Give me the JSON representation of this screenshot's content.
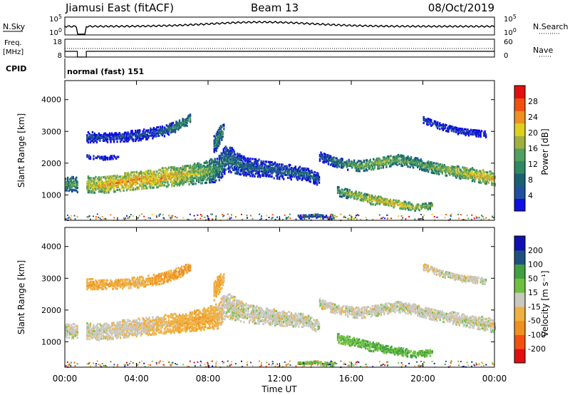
{
  "header": {
    "station": "Jiamusi East (fitACF)",
    "beam": "Beam 13",
    "date": "08/Oct/2019"
  },
  "aux_panels": {
    "nsky": {
      "label": "N.Sky",
      "tick_top": "10^5",
      "tick_bottom": "10^0"
    },
    "nsearch": {
      "label": "N.Search",
      "tick_top": "10^5",
      "tick_bottom": "10^0"
    },
    "freq": {
      "label_line1": "Freq.",
      "label_line2": "[MHz]",
      "tick_top": "18",
      "tick_bottom": "8"
    },
    "nave": {
      "label": "Nave",
      "tick_top": "60",
      "tick_bottom": "0"
    },
    "cpid": {
      "label": "CPID",
      "mode_text": "normal (fast) 151"
    }
  },
  "colors": {
    "power": [
      "#1010e0",
      "#2050a0",
      "#1a6070",
      "#2e8a60",
      "#50a060",
      "#a0b040",
      "#e0d020",
      "#f09020",
      "#f05010",
      "#e01010"
    ],
    "velocity": [
      "#e01010",
      "#f05010",
      "#f09020",
      "#f0b040",
      "#c8c8c0",
      "#70c040",
      "#40a040",
      "#205080",
      "#1010b0"
    ]
  },
  "chart_data": [
    {
      "type": "heatmap",
      "panel": "power",
      "xlabel": "",
      "ylabel": "Slant Range [km]",
      "x_ticks": [
        "00:00",
        "04:00",
        "08:00",
        "12:00",
        "16:00",
        "20:00",
        "00:00"
      ],
      "x_range_hours": [
        0,
        24
      ],
      "y_ticks": [
        "1000",
        "2000",
        "3000",
        "4000"
      ],
      "y_tick_values": [
        1000,
        2000,
        3000,
        4000
      ],
      "ylim": [
        200,
        4600
      ],
      "colorbar": {
        "label": "Power [dB]",
        "ticks": [
          "4",
          "8",
          "12",
          "16",
          "20",
          "24",
          "28"
        ],
        "tick_values": [
          4,
          8,
          12,
          16,
          20,
          24,
          28
        ],
        "range": [
          0,
          32
        ]
      },
      "bands": [
        {
          "x": [
            0.0,
            0.7,
            1.0,
            2.0,
            4.0,
            6.0,
            7.5,
            8.5,
            9.0,
            10.0,
            12.0,
            13.5,
            14.2
          ],
          "y": [
            1400,
            1350,
            1380,
            1350,
            1500,
            1620,
            1720,
            1850,
            2200,
            1950,
            1780,
            1700,
            1500
          ],
          "w": [
            220,
            230,
            250,
            260,
            280,
            300,
            320,
            400,
            420,
            300,
            240,
            200,
            180
          ],
          "p": [
            14,
            14,
            18,
            22,
            24,
            22,
            18,
            12,
            10,
            8,
            8,
            8,
            8
          ]
        },
        {
          "x": [
            1.2,
            2.5,
            4.0,
            5.5,
            6.5,
            7.0
          ],
          "y": [
            2850,
            2850,
            2900,
            3050,
            3250,
            3450
          ],
          "w": [
            160,
            150,
            160,
            170,
            160,
            140
          ],
          "p": [
            6,
            5,
            6,
            8,
            12,
            14
          ]
        },
        {
          "x": [
            1.2,
            2.0,
            3.0
          ],
          "y": [
            2250,
            2200,
            2250
          ],
          "w": [
            60,
            60,
            60
          ],
          "p": [
            5,
            4,
            5
          ]
        },
        {
          "x": [
            8.3,
            8.6,
            8.9
          ],
          "y": [
            2600,
            2900,
            3100
          ],
          "w": [
            300,
            300,
            200
          ],
          "p": [
            10,
            12,
            10
          ]
        },
        {
          "x": [
            14.2,
            14.7,
            15.5,
            16.5,
            17.5,
            18.5,
            19.5,
            20.5,
            21.5,
            22.5,
            24.0
          ],
          "y": [
            2250,
            2150,
            2000,
            1950,
            2050,
            2150,
            2050,
            1900,
            1800,
            1700,
            1550
          ],
          "w": [
            140,
            150,
            160,
            170,
            180,
            170,
            160,
            170,
            180,
            200,
            220
          ],
          "p": [
            6,
            8,
            12,
            16,
            18,
            16,
            14,
            16,
            18,
            20,
            22
          ]
        },
        {
          "x": [
            15.2,
            16.0,
            17.0,
            18.5,
            19.5,
            20.5
          ],
          "y": [
            1150,
            1050,
            900,
            750,
            650,
            700
          ],
          "w": [
            140,
            150,
            150,
            120,
            110,
            100
          ],
          "p": [
            14,
            18,
            20,
            22,
            20,
            16
          ]
        },
        {
          "x": [
            20.0,
            21.0,
            22.0,
            23.5
          ],
          "y": [
            3400,
            3200,
            3050,
            2950
          ],
          "w": [
            100,
            110,
            110,
            100
          ],
          "p": [
            5,
            5,
            5,
            5
          ]
        },
        {
          "x": [
            13.0,
            14.0,
            15.0
          ],
          "y": [
            350,
            380,
            320
          ],
          "w": [
            60,
            60,
            60
          ],
          "p": [
            8,
            8,
            8
          ]
        }
      ]
    },
    {
      "type": "heatmap",
      "panel": "velocity",
      "xlabel": "Time UT",
      "ylabel": "Slant Range [km]",
      "x_ticks": [
        "00:00",
        "04:00",
        "08:00",
        "12:00",
        "16:00",
        "20:00",
        "00:00"
      ],
      "x_range_hours": [
        0,
        24
      ],
      "y_ticks": [
        "1000",
        "2000",
        "3000",
        "4000"
      ],
      "y_tick_values": [
        1000,
        2000,
        3000,
        4000
      ],
      "ylim": [
        200,
        4600
      ],
      "colorbar": {
        "label": "Velocity [m s⁻¹]",
        "ticks": [
          "200",
          "100",
          "50",
          "15",
          "-15",
          "-50",
          "-100",
          "-200"
        ],
        "tick_values": [
          200,
          100,
          50,
          15,
          -15,
          -50,
          -100,
          -200
        ],
        "range": [
          -250,
          250
        ]
      },
      "bands": [
        {
          "x": [
            0.0,
            0.7,
            1.0,
            2.0,
            4.0,
            6.0,
            7.5,
            8.5,
            9.0,
            10.0,
            12.0,
            13.5,
            14.2
          ],
          "y": [
            1400,
            1350,
            1380,
            1350,
            1500,
            1620,
            1720,
            1850,
            2200,
            1950,
            1780,
            1700,
            1500
          ],
          "w": [
            220,
            230,
            250,
            260,
            280,
            300,
            320,
            400,
            420,
            300,
            240,
            200,
            180
          ],
          "v": [
            0,
            0,
            0,
            0,
            -10,
            -30,
            -40,
            -30,
            0,
            0,
            0,
            0,
            0
          ]
        },
        {
          "x": [
            1.2,
            2.5,
            4.0,
            5.5,
            6.5,
            7.0
          ],
          "y": [
            2850,
            2850,
            2900,
            3050,
            3250,
            3450
          ],
          "w": [
            160,
            150,
            160,
            170,
            160,
            140
          ],
          "v": [
            -40,
            -40,
            -30,
            -50,
            -60,
            -50
          ]
        },
        {
          "x": [
            8.3,
            8.6,
            8.9
          ],
          "y": [
            2600,
            2900,
            3100
          ],
          "w": [
            300,
            300,
            200
          ],
          "v": [
            -30,
            -40,
            -20
          ]
        },
        {
          "x": [
            14.2,
            14.7,
            15.5,
            16.5,
            17.5,
            18.5,
            19.5,
            20.5,
            21.5,
            22.5,
            24.0
          ],
          "y": [
            2250,
            2150,
            2000,
            1950,
            2050,
            2150,
            2050,
            1900,
            1800,
            1700,
            1550
          ],
          "w": [
            140,
            150,
            160,
            170,
            180,
            170,
            160,
            170,
            180,
            200,
            220
          ],
          "v": [
            0,
            0,
            0,
            0,
            0,
            0,
            0,
            0,
            0,
            0,
            0
          ]
        },
        {
          "x": [
            15.2,
            16.0,
            17.0,
            18.5,
            19.5,
            20.5
          ],
          "y": [
            1150,
            1050,
            900,
            750,
            650,
            700
          ],
          "w": [
            140,
            150,
            150,
            120,
            110,
            100
          ],
          "v": [
            40,
            40,
            45,
            50,
            45,
            40
          ]
        },
        {
          "x": [
            20.0,
            21.0,
            22.0,
            23.5
          ],
          "y": [
            3400,
            3200,
            3050,
            2950
          ],
          "w": [
            100,
            110,
            110,
            100
          ],
          "v": [
            -20,
            0,
            0,
            0
          ]
        },
        {
          "x": [
            13.0,
            14.0,
            15.0
          ],
          "y": [
            350,
            380,
            320
          ],
          "w": [
            60,
            60,
            60
          ],
          "v": [
            40,
            40,
            40
          ]
        }
      ]
    }
  ]
}
